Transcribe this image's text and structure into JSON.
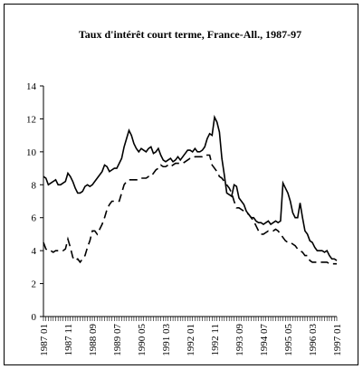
{
  "chart_data": {
    "type": "line",
    "title": "Taux d'intérêt court terme, France-All., 1987-97",
    "categories": [
      "1987 01",
      null,
      null,
      null,
      null,
      null,
      null,
      null,
      null,
      null,
      "1987 11",
      null,
      null,
      null,
      null,
      null,
      null,
      null,
      null,
      null,
      "1988 09",
      null,
      null,
      null,
      null,
      null,
      null,
      null,
      null,
      null,
      "1989 07",
      null,
      null,
      null,
      null,
      null,
      null,
      null,
      null,
      null,
      "1990 05",
      null,
      null,
      null,
      null,
      null,
      null,
      null,
      null,
      null,
      "1991 03",
      null,
      null,
      null,
      null,
      null,
      null,
      null,
      null,
      null,
      "1992 01",
      null,
      null,
      null,
      null,
      null,
      null,
      null,
      null,
      null,
      "1992 11",
      null,
      null,
      null,
      null,
      null,
      null,
      null,
      null,
      null,
      "1993 09",
      null,
      null,
      null,
      null,
      null,
      null,
      null,
      null,
      null,
      "1994 07",
      null,
      null,
      null,
      null,
      null,
      null,
      null,
      null,
      null,
      "1995 05",
      null,
      null,
      null,
      null,
      null,
      null,
      null,
      null,
      null,
      "1996 03",
      null,
      null,
      null,
      null,
      null,
      null,
      null,
      null,
      null,
      "1997 01"
    ],
    "series": [
      {
        "color": "#000000",
        "dash": "none",
        "values": [
          8.5,
          8.4,
          8.0,
          8.1,
          8.2,
          8.3,
          8.0,
          8.0,
          8.1,
          8.2,
          8.7,
          8.5,
          8.2,
          7.8,
          7.5,
          7.5,
          7.6,
          7.9,
          8.0,
          7.9,
          8.0,
          8.2,
          8.4,
          8.6,
          8.8,
          9.2,
          9.1,
          8.8,
          8.9,
          9.0,
          9.0,
          9.3,
          9.6,
          10.3,
          10.8,
          11.3,
          11.0,
          10.5,
          10.2,
          10.0,
          10.2,
          10.1,
          10.0,
          10.2,
          10.3,
          9.9,
          10.0,
          10.2,
          9.8,
          9.5,
          9.4,
          9.5,
          9.6,
          9.4,
          9.5,
          9.7,
          9.5,
          9.7,
          9.9,
          10.1,
          10.1,
          10.0,
          10.2,
          10.0,
          10.0,
          10.1,
          10.3,
          10.8,
          11.1,
          11.0,
          12.1,
          11.8,
          11.2,
          9.6,
          8.6,
          7.5,
          7.4,
          7.3,
          8.0,
          7.9,
          7.2,
          7.0,
          6.8,
          6.4,
          6.2,
          6.0,
          6.0,
          5.8,
          5.7,
          5.7,
          5.6,
          5.7,
          5.8,
          5.6,
          5.7,
          5.8,
          5.7,
          5.8,
          8.1,
          7.8,
          7.5,
          7.0,
          6.3,
          6.0,
          6.0,
          6.9,
          6.0,
          5.2,
          5.0,
          4.6,
          4.5,
          4.2,
          4.0,
          4.0,
          4.0,
          3.9,
          4.0,
          3.7,
          3.5,
          3.5,
          3.4
        ]
      },
      {
        "color": "#000000",
        "dash": "9 5",
        "values": [
          4.5,
          4.1,
          4.0,
          4.0,
          3.9,
          4.0,
          4.0,
          4.0,
          4.0,
          4.1,
          4.7,
          4.2,
          3.6,
          3.4,
          3.5,
          3.3,
          3.5,
          3.7,
          4.2,
          4.6,
          5.2,
          5.2,
          5.0,
          5.3,
          5.6,
          6.0,
          6.5,
          6.8,
          7.0,
          7.0,
          7.0,
          7.0,
          7.5,
          8.0,
          8.2,
          8.3,
          8.3,
          8.3,
          8.3,
          8.3,
          8.4,
          8.4,
          8.4,
          8.5,
          8.5,
          8.7,
          8.9,
          9.0,
          9.2,
          9.1,
          9.1,
          9.2,
          9.1,
          9.2,
          9.3,
          9.3,
          9.3,
          9.3,
          9.4,
          9.5,
          9.6,
          9.6,
          9.7,
          9.7,
          9.7,
          9.7,
          9.8,
          9.8,
          9.8,
          9.2,
          9.0,
          8.8,
          8.5,
          8.4,
          8.2,
          8.0,
          7.8,
          7.5,
          7.0,
          6.6,
          6.6,
          6.5,
          6.4,
          6.3,
          6.2,
          6.0,
          5.8,
          5.5,
          5.2,
          5.0,
          5.0,
          5.1,
          5.2,
          5.2,
          5.2,
          5.3,
          5.2,
          5.0,
          4.8,
          4.6,
          4.5,
          4.5,
          4.4,
          4.3,
          4.1,
          4.0,
          3.9,
          3.7,
          3.7,
          3.4,
          3.3,
          3.3,
          3.3,
          3.3,
          3.3,
          3.3,
          3.3,
          3.2,
          3.2,
          3.2,
          3.2
        ]
      }
    ],
    "ylim": [
      0,
      14
    ],
    "yticks": [
      0,
      2,
      4,
      6,
      8,
      10,
      12,
      14
    ],
    "grid": false
  }
}
